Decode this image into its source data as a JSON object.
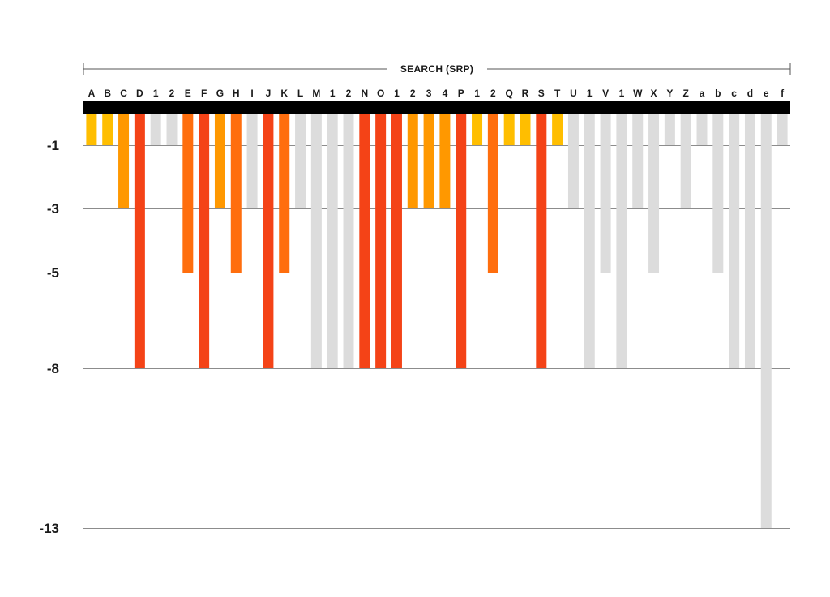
{
  "chart_data": {
    "type": "bar",
    "title": "SEARCH (SRP)",
    "xlabel": "",
    "ylabel": "",
    "categories": [
      "A",
      "B",
      "C",
      "D",
      "1",
      "2",
      "E",
      "F",
      "G",
      "H",
      "I",
      "J",
      "K",
      "L",
      "M",
      "1",
      "2",
      "N",
      "O",
      "1",
      "2",
      "3",
      "4",
      "P",
      "1",
      "2",
      "Q",
      "R",
      "S",
      "T",
      "U",
      "1",
      "V",
      "1",
      "W",
      "X",
      "Y",
      "Z",
      "a",
      "b",
      "c",
      "d",
      "e",
      "f"
    ],
    "values": [
      -1,
      -1,
      -3,
      -8,
      -1,
      -1,
      -5,
      -8,
      -3,
      -5,
      -3,
      -8,
      -5,
      -3,
      -8,
      -8,
      -8,
      -8,
      -8,
      -8,
      -3,
      -3,
      -3,
      -8,
      -1,
      -5,
      -1,
      -1,
      -8,
      -1,
      -3,
      -8,
      -5,
      -8,
      -3,
      -5,
      -1,
      -3,
      -1,
      -5,
      -8,
      -8,
      -13,
      -1
    ],
    "y_ticks": [
      -1,
      -3,
      -5,
      -8,
      -13
    ],
    "ylim": [
      0,
      -13
    ],
    "grid": true,
    "colors": {
      "yellow": "#FFBE00",
      "amber": "#FF9800",
      "orange": "#FF6E0E",
      "red": "#F44317",
      "gray": "#DCDCDC",
      "band": "#000000"
    },
    "bar_colors": [
      "yellow",
      "yellow",
      "amber",
      "red",
      "gray",
      "gray",
      "orange",
      "red",
      "amber",
      "orange",
      "gray",
      "red",
      "orange",
      "gray",
      "gray",
      "gray",
      "gray",
      "red",
      "red",
      "red",
      "amber",
      "amber",
      "amber",
      "red",
      "yellow",
      "orange",
      "yellow",
      "yellow",
      "red",
      "yellow",
      "gray",
      "gray",
      "gray",
      "gray",
      "gray",
      "gray",
      "gray",
      "gray",
      "gray",
      "gray",
      "gray",
      "gray",
      "gray",
      "gray"
    ]
  }
}
